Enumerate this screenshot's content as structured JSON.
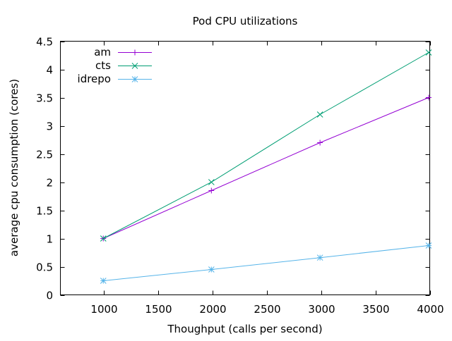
{
  "chart_data": {
    "type": "line",
    "title": "Pod CPU utilizations",
    "xlabel": "Thoughput (calls per second)",
    "ylabel": "average cpu consumption (cores)",
    "xlim": [
      600,
      4000
    ],
    "ylim": [
      0,
      4.5
    ],
    "xticks": [
      1000,
      1500,
      2000,
      2500,
      3000,
      3500,
      4000
    ],
    "xtick_labels": [
      "1000",
      "1500",
      "2000",
      "2500",
      "3000",
      "3500",
      "4000"
    ],
    "yticks": [
      0,
      0.5,
      1,
      1.5,
      2,
      2.5,
      3,
      3.5,
      4,
      4.5
    ],
    "ytick_labels": [
      "0",
      "0.5",
      "1",
      "1.5",
      "2",
      "2.5",
      "3",
      "3.5",
      "4",
      "4.5"
    ],
    "grid": false,
    "legend_position": "top-left",
    "x": [
      995,
      1990,
      2990,
      3990
    ],
    "series": [
      {
        "name": "am",
        "color": "#9400d3",
        "marker": "plus",
        "values": [
          1.0,
          1.85,
          2.7,
          3.5
        ]
      },
      {
        "name": "cts",
        "color": "#009e73",
        "marker": "cross",
        "values": [
          1.0,
          2.0,
          3.2,
          4.3
        ]
      },
      {
        "name": "idrepo",
        "color": "#56b4e9",
        "marker": "star",
        "values": [
          0.25,
          0.45,
          0.66,
          0.875
        ]
      }
    ]
  }
}
